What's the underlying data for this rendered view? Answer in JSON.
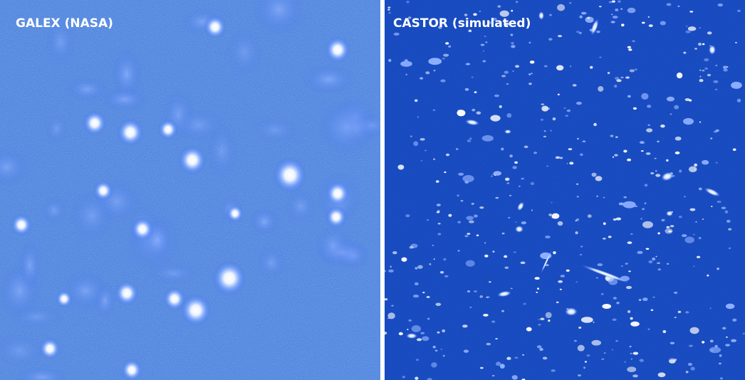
{
  "panels": [
    {
      "label": "GALEX (NASA)"
    },
    {
      "label": "CASTOR (simulated)"
    }
  ]
}
